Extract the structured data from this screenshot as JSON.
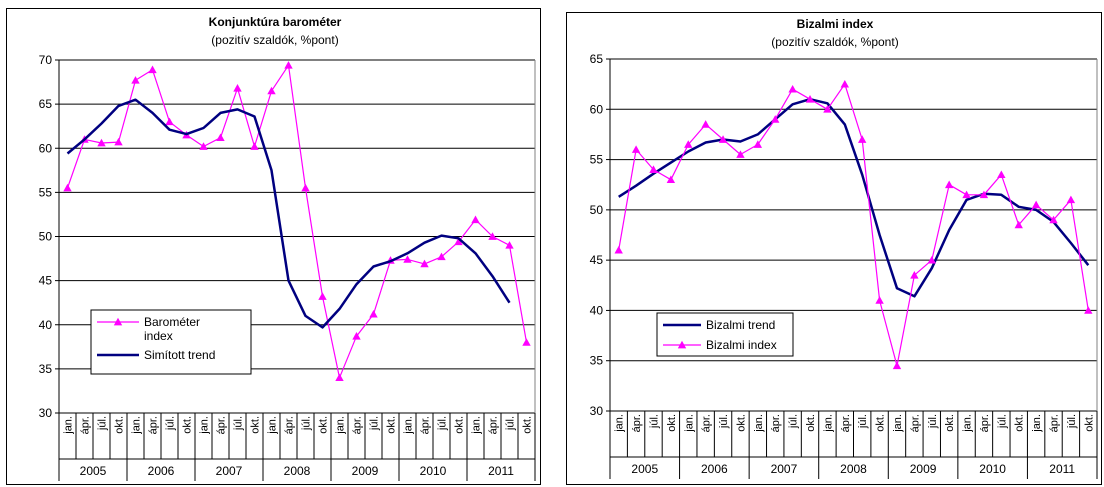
{
  "colors": {
    "index": "#ff00ff",
    "trend": "#000080",
    "grid": "#000000"
  },
  "chart_data": [
    {
      "type": "line",
      "title": "Konjunktúra barométer",
      "subtitle": "(pozitív szaldók, %pont)",
      "ylim": [
        30,
        70
      ],
      "yticks": [
        "30",
        "35",
        "40",
        "45",
        "50",
        "55",
        "60",
        "65",
        "70"
      ],
      "month_labels": [
        "jan.",
        "ápr.",
        "júl.",
        "okt.",
        "jan.",
        "ápr.",
        "júl.",
        "okt.",
        "jan.",
        "ápr.",
        "júl.",
        "okt.",
        "jan.",
        "ápr.",
        "júl.",
        "okt.",
        "jan.",
        "ápr.",
        "júl.",
        "okt.",
        "jan.",
        "ápr.",
        "júl.",
        "okt.",
        "jan.",
        "ápr.",
        "júl.",
        "okt."
      ],
      "years": [
        "2005",
        "2006",
        "2007",
        "2008",
        "2009",
        "2010",
        "2011"
      ],
      "legend_position": "bottom-left",
      "series": [
        {
          "name": "Barométer index",
          "legend_lines": [
            "Barométer",
            "index"
          ],
          "marker": "triangle",
          "color": "#ff00ff",
          "values": [
            55.5,
            61,
            60.6,
            60.7,
            67.7,
            68.9,
            63,
            61.5,
            60.2,
            61.2,
            66.8,
            60.2,
            66.5,
            69.4,
            55.5,
            43.2,
            34,
            38.7,
            41.2,
            47.3,
            47.4,
            46.9,
            47.7,
            49.4,
            51.9,
            50,
            49,
            38
          ]
        },
        {
          "name": "Simított trend",
          "legend_lines": [
            "Simított trend"
          ],
          "marker": "none",
          "color": "#000080",
          "values": [
            59.4,
            61,
            62.8,
            64.8,
            65.5,
            64,
            62.1,
            61.6,
            62.3,
            64,
            64.4,
            63.6,
            57.5,
            45,
            41,
            39.7,
            41.8,
            44.6,
            46.6,
            47.2,
            48.1,
            49.3,
            50.1,
            49.8,
            48.1,
            45.5,
            42.5
          ]
        }
      ]
    },
    {
      "type": "line",
      "title": "Bizalmi index",
      "subtitle": "(pozitív szaldók, %pont)",
      "ylim": [
        30,
        65
      ],
      "yticks": [
        "30",
        "35",
        "40",
        "45",
        "50",
        "55",
        "60",
        "65"
      ],
      "month_labels": [
        "jan.",
        "ápr.",
        "júl.",
        "okt.",
        "jan.",
        "ápr.",
        "júl.",
        "okt.",
        "jan.",
        "ápr.",
        "júl.",
        "okt.",
        "jan.",
        "ápr.",
        "júl.",
        "okt.",
        "jan.",
        "ápr.",
        "júl.",
        "okt.",
        "jan.",
        "ápr.",
        "júl.",
        "okt.",
        "jan.",
        "ápr.",
        "júl.",
        "okt."
      ],
      "years": [
        "2005",
        "2006",
        "2007",
        "2008",
        "2009",
        "2010",
        "2011"
      ],
      "legend_position": "bottom-left",
      "series": [
        {
          "name": "Bizalmi trend",
          "legend_lines": [
            "Bizalmi trend"
          ],
          "marker": "none",
          "color": "#000080",
          "values": [
            51.3,
            52.4,
            53.6,
            54.7,
            55.8,
            56.7,
            57,
            56.8,
            57.5,
            59,
            60.5,
            61,
            60.6,
            58.5,
            53.5,
            47.5,
            42.2,
            41.4,
            44.2,
            48,
            51,
            51.6,
            51.5,
            50.3,
            50,
            48.8,
            46.7,
            44.5
          ]
        },
        {
          "name": "Bizalmi index",
          "legend_lines": [
            "Bizalmi index"
          ],
          "marker": "triangle",
          "color": "#ff00ff",
          "values": [
            46,
            56,
            54,
            53,
            56.5,
            58.5,
            57,
            55.5,
            56.5,
            59,
            62,
            61,
            60,
            62.5,
            57,
            41,
            34.5,
            43.5,
            45,
            52.5,
            51.5,
            51.5,
            53.5,
            48.5,
            50.5,
            49,
            51,
            40
          ]
        }
      ]
    }
  ]
}
